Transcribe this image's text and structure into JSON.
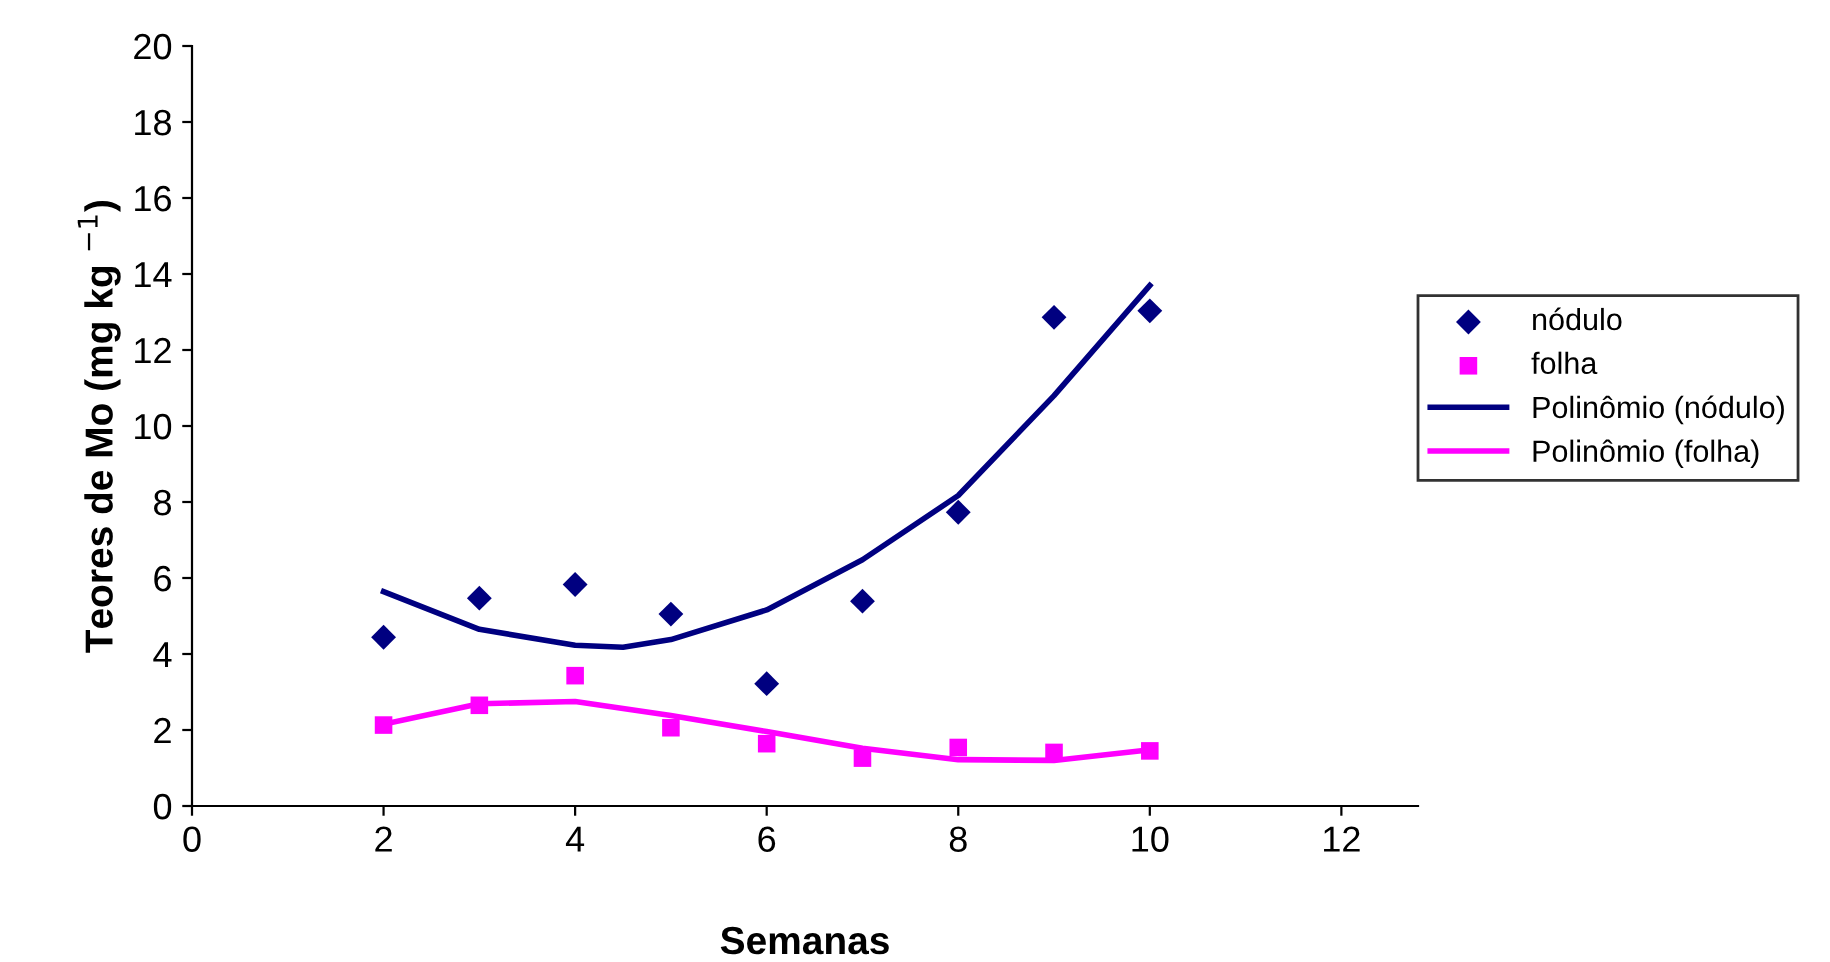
{
  "chart_data": {
    "type": "scatter",
    "xlabel": "Semanas",
    "ylabel": "Teores de Mo (mg kg $^{−1}$)",
    "xlim": [
      0,
      12.8
    ],
    "xticks": [
      0,
      2,
      4,
      6,
      8,
      10,
      12
    ],
    "ylim": [
      0,
      20
    ],
    "yticks": [
      0,
      2,
      4,
      6,
      8,
      10,
      12,
      14,
      16,
      18,
      20
    ],
    "grid": false,
    "legend": "right",
    "series": [
      {
        "name": "nódulo",
        "marker": "diamond",
        "color": "#000080",
        "x": [
          2,
          3,
          4,
          5,
          6,
          7,
          8,
          9,
          10
        ],
        "values": [
          4.44,
          5.47,
          5.83,
          5.05,
          3.22,
          5.39,
          7.73,
          12.86,
          13.03
        ]
      },
      {
        "name": "folha",
        "marker": "square",
        "color": "#ff00ff",
        "x": [
          2,
          3,
          4,
          5,
          6,
          7,
          8,
          9,
          10
        ],
        "values": [
          2.13,
          2.65,
          3.43,
          2.06,
          1.64,
          1.26,
          1.54,
          1.41,
          1.45
        ]
      },
      {
        "name": "Polinômio (nódulo)",
        "type": "line",
        "marker": "none",
        "line_style": "solid",
        "color": "#000080",
        "x": [
          2,
          3,
          4,
          4.5,
          5,
          6,
          7,
          8,
          9,
          10
        ],
        "values": [
          5.64,
          4.65,
          4.23,
          4.18,
          4.38,
          5.16,
          6.48,
          8.17,
          10.8,
          13.7
        ]
      },
      {
        "name": "Polinômio (folha)",
        "type": "line",
        "marker": "none",
        "line_style": "solid",
        "color": "#ff00ff",
        "x": [
          2,
          3,
          4,
          5,
          6,
          7,
          8,
          9,
          10
        ],
        "values": [
          2.15,
          2.69,
          2.75,
          2.38,
          1.96,
          1.52,
          1.22,
          1.2,
          1.48
        ]
      }
    ]
  }
}
